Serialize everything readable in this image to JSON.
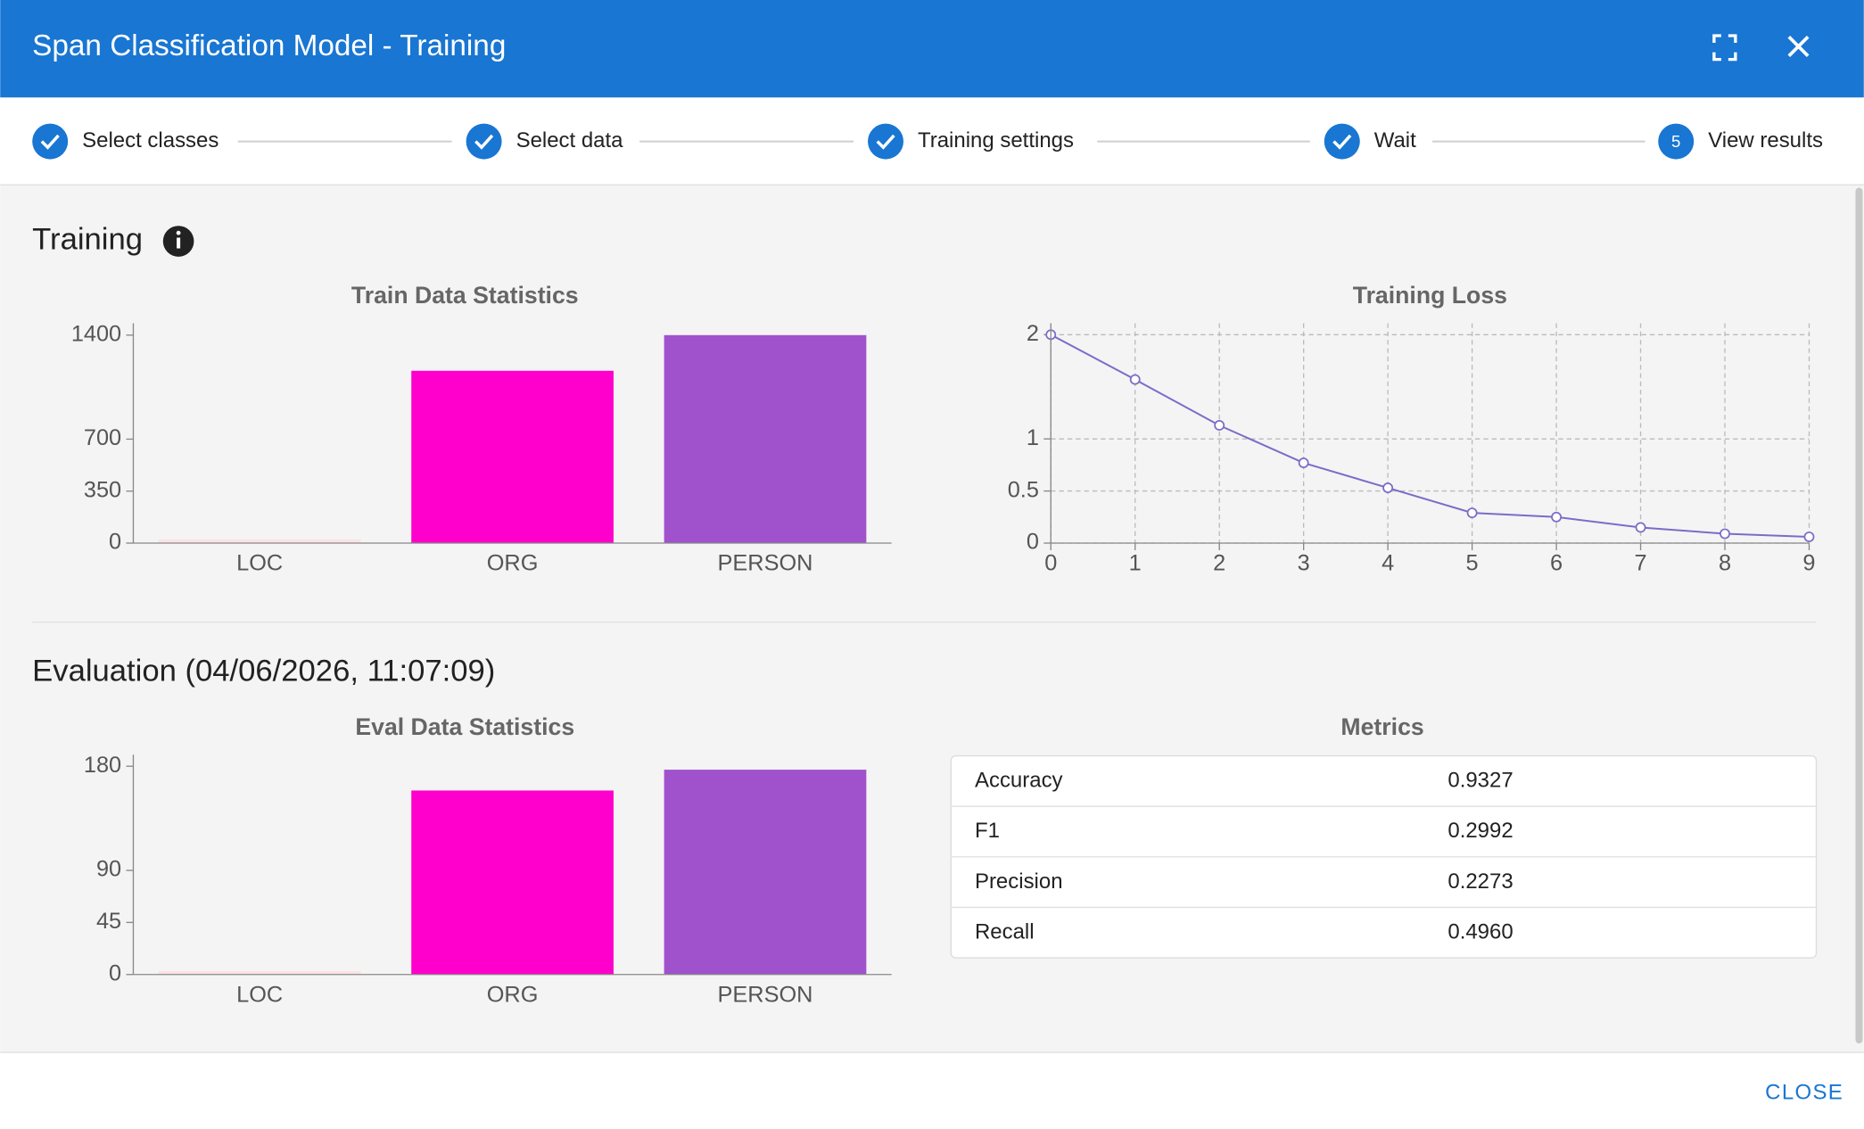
{
  "dialog": {
    "title": "Span Classification Model - Training",
    "close_button": "CLOSE"
  },
  "stepper": {
    "steps": [
      "Select classes",
      "Select data",
      "Training settings",
      "Wait",
      "View results"
    ],
    "current_step": 5
  },
  "training_heading": "Training",
  "evaluation_heading": "Evaluation (04/06/2026, 11:07:09)",
  "chart_data": [
    {
      "type": "bar",
      "title": "Train Data Statistics",
      "categories": [
        "LOC",
        "ORG",
        "PERSON"
      ],
      "values": [
        25,
        1160,
        1400
      ],
      "colors": [
        "#fde2e4",
        "#ff00cc",
        "#a052cc"
      ],
      "ylim": [
        0,
        1480
      ],
      "yticks": [
        0,
        350,
        700,
        1400
      ],
      "grid": false
    },
    {
      "type": "line",
      "title": "Training Loss",
      "x": [
        0,
        1,
        2,
        3,
        4,
        5,
        6,
        7,
        8,
        9
      ],
      "values": [
        2.0,
        1.57,
        1.13,
        0.77,
        0.53,
        0.29,
        0.25,
        0.15,
        0.09,
        0.06
      ],
      "color": "#7b6cc8",
      "xlim": [
        0,
        9
      ],
      "xticks": [
        0,
        1,
        2,
        3,
        4,
        5,
        6,
        7,
        8,
        9
      ],
      "ylim": [
        0,
        2.11
      ],
      "yticks": [
        0,
        0.5,
        1,
        2
      ],
      "grid": true
    },
    {
      "type": "bar",
      "title": "Eval Data Statistics",
      "categories": [
        "LOC",
        "ORG",
        "PERSON"
      ],
      "values": [
        3,
        159,
        177
      ],
      "colors": [
        "#fde2e4",
        "#ff00cc",
        "#a052cc"
      ],
      "ylim": [
        0,
        190
      ],
      "yticks": [
        0,
        45,
        90,
        180
      ],
      "grid": false
    }
  ],
  "metrics": {
    "title": "Metrics",
    "rows": [
      [
        "Accuracy",
        "0.9327"
      ],
      [
        "F1",
        "0.2992"
      ],
      [
        "Precision",
        "0.2273"
      ],
      [
        "Recall",
        "0.4960"
      ]
    ]
  }
}
